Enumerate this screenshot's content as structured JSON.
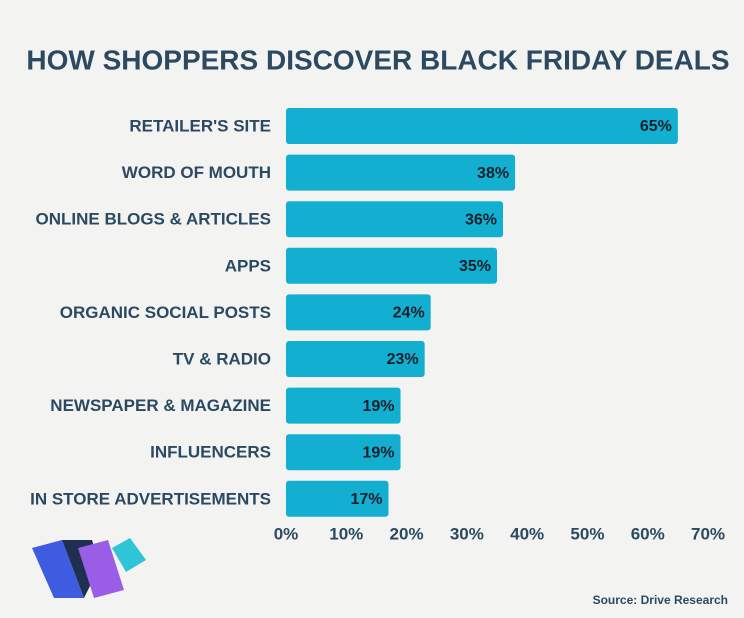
{
  "chart_data": {
    "type": "bar",
    "orientation": "horizontal",
    "title": "HOW SHOPPERS DISCOVER BLACK FRIDAY DEALS",
    "categories": [
      "RETAILER'S SITE",
      "WORD OF MOUTH",
      "ONLINE BLOGS & ARTICLES",
      "APPS",
      "ORGANIC SOCIAL POSTS",
      "TV & RADIO",
      "NEWSPAPER & MAGAZINE",
      "INFLUENCERS",
      "IN STORE ADVERTISEMENTS"
    ],
    "values": [
      65,
      38,
      36,
      35,
      24,
      23,
      19,
      19,
      17
    ],
    "value_labels": [
      "65%",
      "38%",
      "36%",
      "35%",
      "24%",
      "23%",
      "19%",
      "19%",
      "17%"
    ],
    "color": "#12afd1",
    "xlim": [
      0,
      70
    ],
    "xticks": [
      {
        "value": 0,
        "label": "0%"
      },
      {
        "value": 10,
        "label": "10%"
      },
      {
        "value": 20,
        "label": "20%"
      },
      {
        "value": 30,
        "label": "30%"
      },
      {
        "value": 40,
        "label": "40%"
      },
      {
        "value": 50,
        "label": "50%"
      },
      {
        "value": 60,
        "label": "60%"
      },
      {
        "value": 70,
        "label": "70%"
      }
    ],
    "grid": false,
    "source": "Source: Drive Research"
  }
}
